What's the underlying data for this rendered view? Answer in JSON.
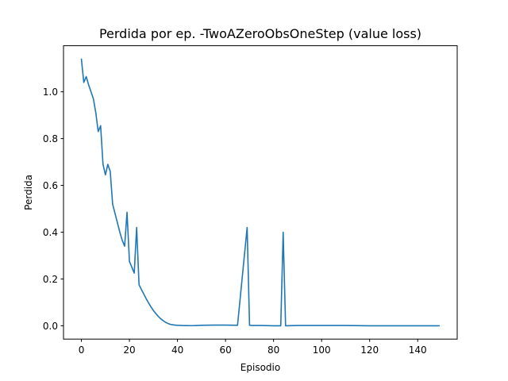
{
  "chart_data": {
    "type": "line",
    "title": "Perdida por ep. -TwoAZeroObsOneStep (value loss)",
    "xlabel": "Episodio",
    "ylabel": "Perdida",
    "xlim": [
      -7.45,
      156.45
    ],
    "ylim": [
      -0.057,
      1.197
    ],
    "xticks": [
      0,
      20,
      40,
      60,
      80,
      100,
      120,
      140
    ],
    "yticks": [
      0.0,
      0.2,
      0.4,
      0.6,
      0.8,
      1.0
    ],
    "xtick_labels": [
      "0",
      "20",
      "40",
      "60",
      "80",
      "100",
      "120",
      "140"
    ],
    "ytick_labels": [
      "0.0",
      "0.2",
      "0.4",
      "0.6",
      "0.8",
      "1.0"
    ],
    "grid": false,
    "series_color": "#1f77b4",
    "series": [
      {
        "x": [
          0,
          1,
          2,
          3,
          4,
          5,
          6,
          7,
          8,
          9,
          10,
          11,
          12,
          13,
          14,
          15,
          16,
          17,
          18,
          19,
          20,
          21,
          22,
          23,
          24,
          25,
          26,
          27,
          28,
          29,
          30,
          31,
          32,
          33,
          34,
          35,
          36,
          37,
          38,
          39,
          40,
          41,
          42,
          43,
          44,
          45,
          46,
          47,
          48,
          50,
          55,
          60,
          65,
          69,
          70,
          71,
          75,
          80,
          83,
          84,
          85,
          90,
          100,
          110,
          120,
          130,
          140,
          149
        ],
        "y": [
          1.14,
          1.04,
          1.065,
          1.03,
          1.0,
          0.97,
          0.91,
          0.83,
          0.855,
          0.69,
          0.645,
          0.69,
          0.66,
          0.52,
          0.48,
          0.44,
          0.4,
          0.365,
          0.34,
          0.485,
          0.275,
          0.25,
          0.225,
          0.42,
          0.175,
          0.155,
          0.135,
          0.115,
          0.097,
          0.08,
          0.065,
          0.052,
          0.04,
          0.03,
          0.022,
          0.015,
          0.01,
          0.006,
          0.004,
          0.003,
          0.002,
          0.0015,
          0.001,
          0.0008,
          0.0006,
          0.0005,
          0.0005,
          0.0006,
          0.001,
          0.002,
          0.003,
          0.003,
          0.002,
          0.42,
          0.002,
          0.001,
          0.001,
          0.0,
          0.0,
          0.4,
          0.0,
          0.001,
          0.001,
          0.001,
          0.0,
          0.0,
          0.0,
          0.0
        ]
      }
    ]
  }
}
